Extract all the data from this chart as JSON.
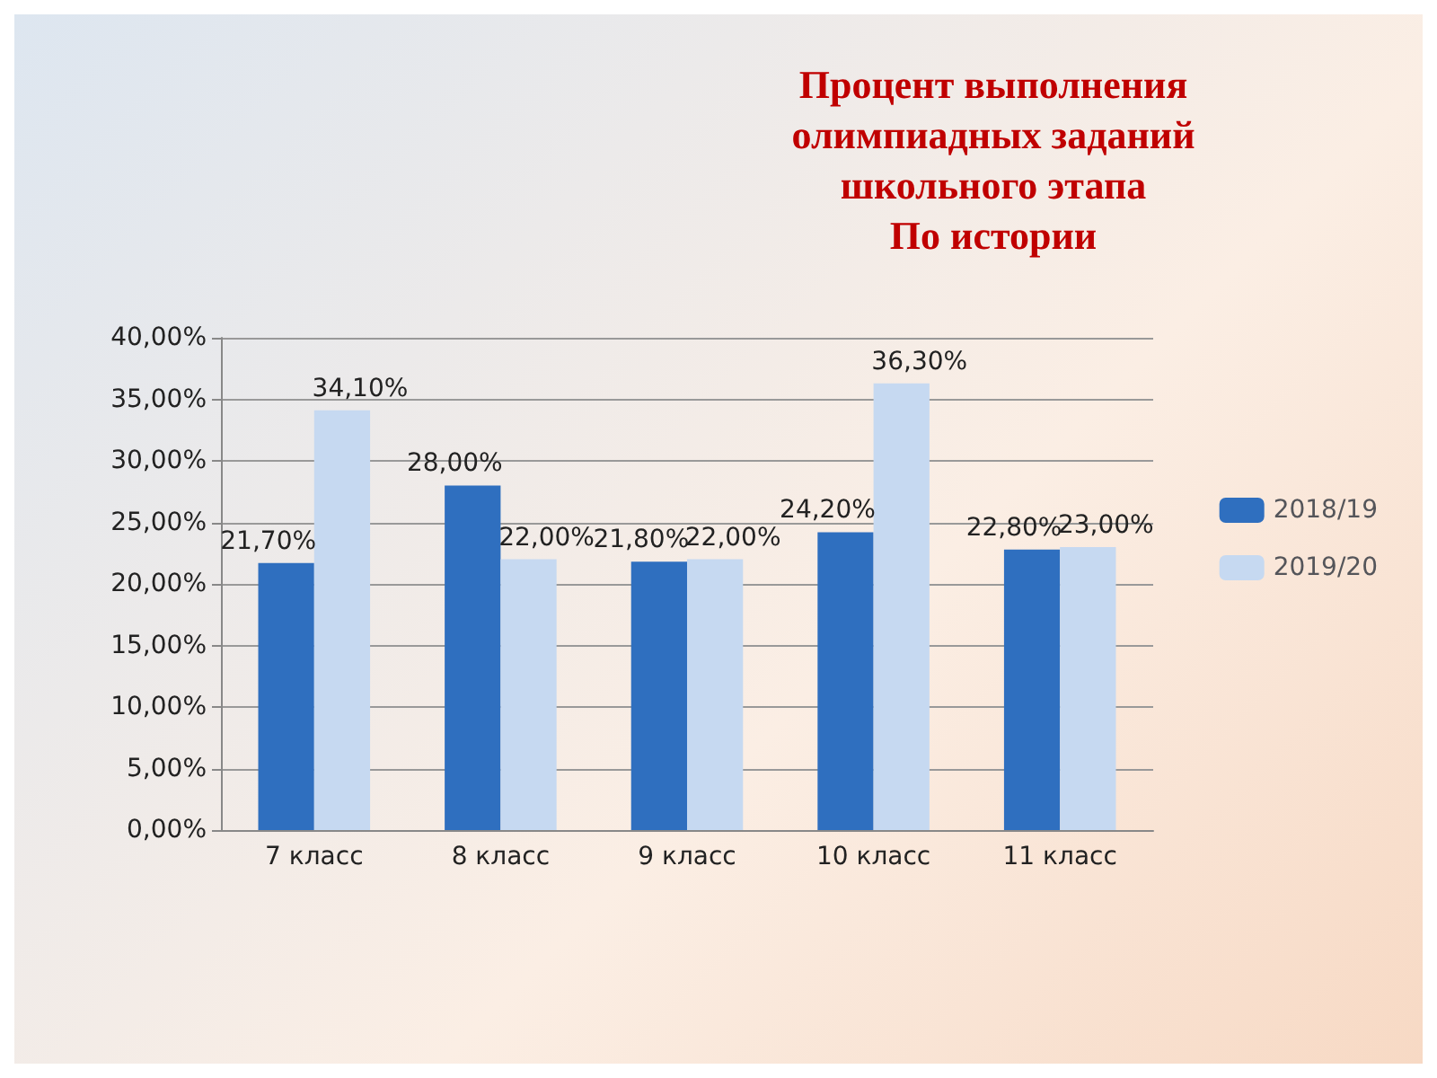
{
  "chart_data": {
    "type": "bar",
    "title": "Процент выполнения\nолимпиадных заданий\nшкольного этапа\nПо истории",
    "categories": [
      "7 класс",
      "8 класс",
      "9 класс",
      "10 класс",
      "11 класс"
    ],
    "series": [
      {
        "name": "2018/19",
        "color": "#2f6fbf",
        "values": [
          21.7,
          28,
          21.8,
          24.2,
          22.8
        ],
        "value_labels": [
          "21,70%",
          "28,00%",
          "21,80%",
          "24,20%",
          "22,80%"
        ]
      },
      {
        "name": "2019/20",
        "color": "#c6d9f1",
        "values": [
          34.1,
          22,
          22,
          36.3,
          23
        ],
        "value_labels": [
          "34,10%",
          "22,00%",
          "22,00%",
          "36,30%",
          "23,00%"
        ]
      }
    ],
    "ylim": [
      0,
      40
    ],
    "yticks": [
      {
        "value": 0,
        "label": "0,00%"
      },
      {
        "value": 5,
        "label": "5,00%"
      },
      {
        "value": 10,
        "label": "10,00%"
      },
      {
        "value": 15,
        "label": "15,00%"
      },
      {
        "value": 20,
        "label": "20,00%"
      },
      {
        "value": 25,
        "label": "25,00%"
      },
      {
        "value": 30,
        "label": "30,00%"
      },
      {
        "value": 35,
        "label": "35,00%"
      },
      {
        "value": 40,
        "label": "40,00%"
      }
    ],
    "grid": "y",
    "legend": "right"
  }
}
